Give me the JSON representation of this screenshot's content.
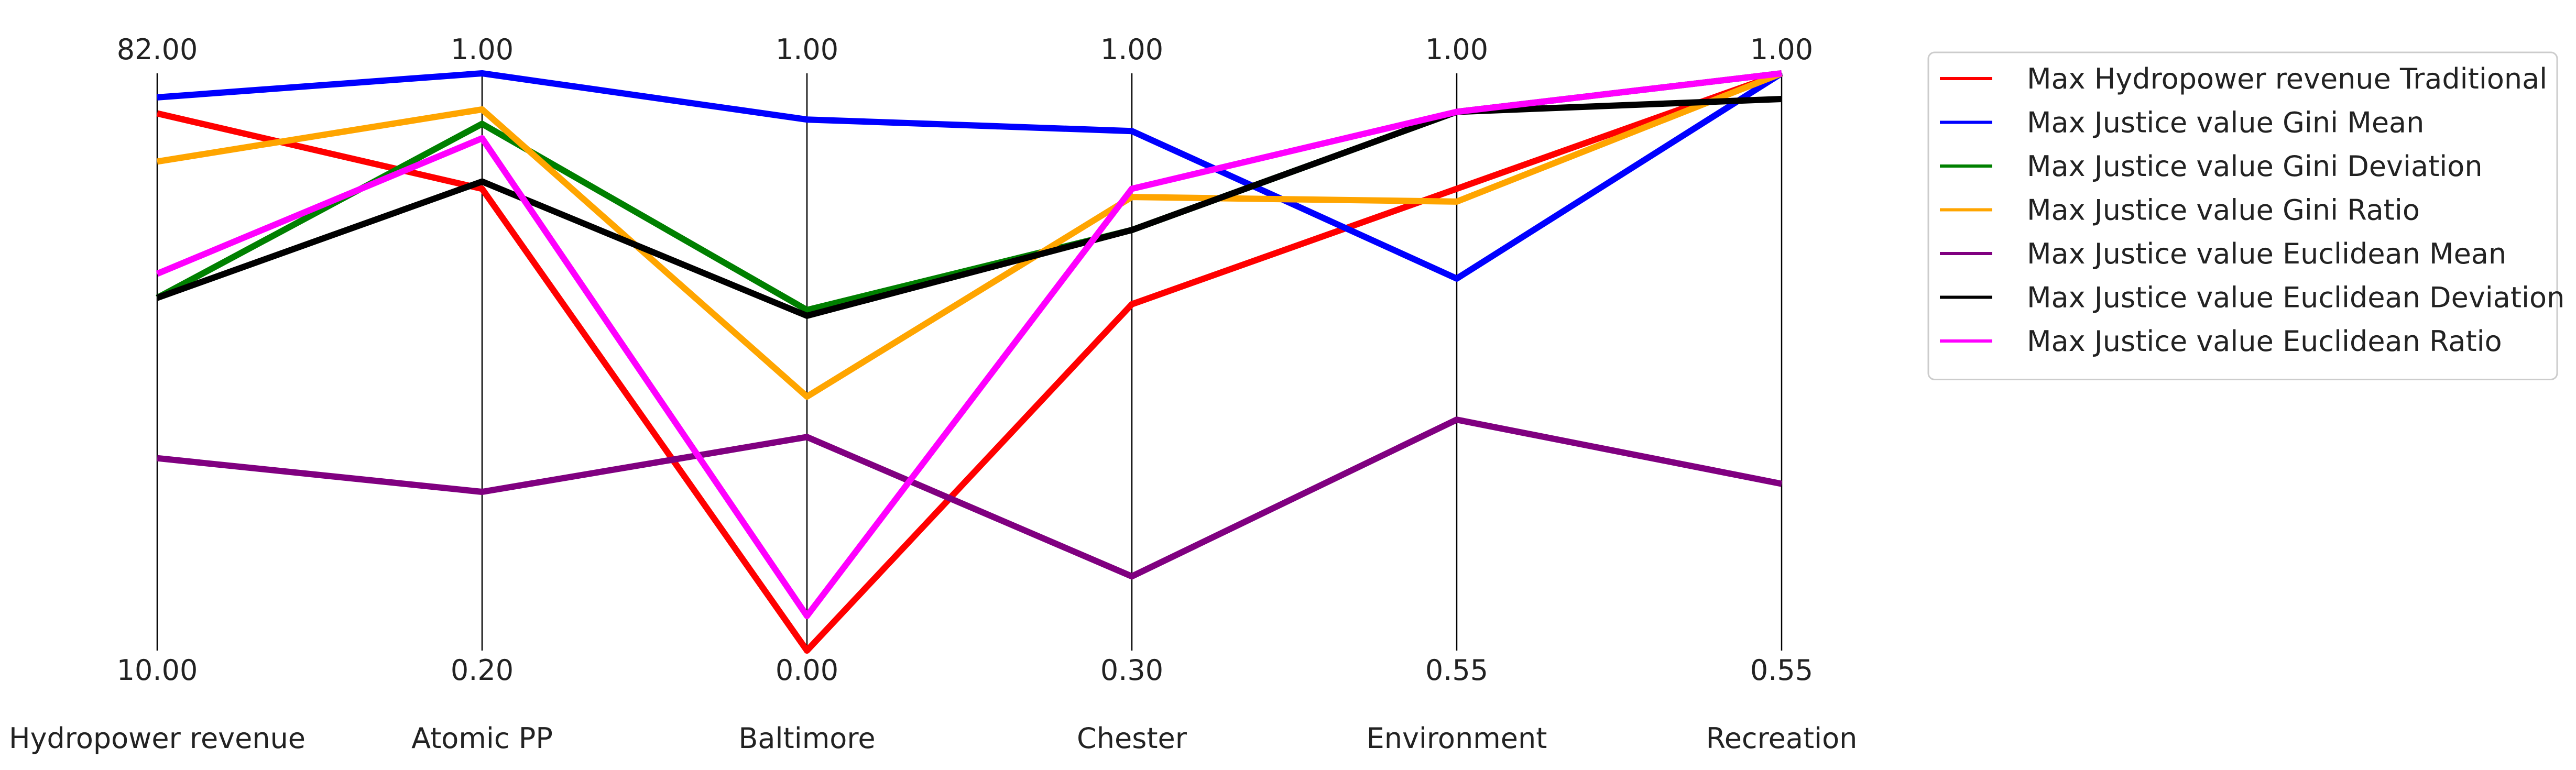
{
  "chart_data": {
    "type": "line",
    "subtype": "parallel-coordinates",
    "axes": [
      {
        "name": "Hydropower revenue",
        "max_label": "82.00",
        "min_label": "10.00",
        "min": 10.0,
        "max": 82.0
      },
      {
        "name": "Atomic PP",
        "max_label": "1.00",
        "min_label": "0.20",
        "min": 0.2,
        "max": 1.0
      },
      {
        "name": "Baltimore",
        "max_label": "1.00",
        "min_label": "0.00",
        "min": 0.0,
        "max": 1.0
      },
      {
        "name": "Chester",
        "max_label": "1.00",
        "min_label": "0.30",
        "min": 0.3,
        "max": 1.0
      },
      {
        "name": "Environment",
        "max_label": "1.00",
        "min_label": "0.55",
        "min": 0.55,
        "max": 1.0
      },
      {
        "name": "Recreation",
        "max_label": "1.00",
        "min_label": "0.55",
        "min": 0.55,
        "max": 1.0
      }
    ],
    "series": [
      {
        "name": "Max Hydropower revenue Traditional",
        "color": "#ff0000",
        "values": [
          77.0,
          0.84,
          0.0,
          0.72,
          0.91,
          1.0
        ]
      },
      {
        "name": "Max Justice value Gini Mean",
        "color": "#0000ff",
        "values": [
          79.0,
          1.0,
          0.92,
          0.93,
          0.84,
          1.0
        ]
      },
      {
        "name": "Max Justice value Gini Deviation",
        "color": "#008000",
        "values": [
          54.0,
          0.93,
          0.59,
          0.81,
          0.97,
          1.0
        ]
      },
      {
        "name": "Max Justice value Gini Ratio",
        "color": "#ffa500",
        "values": [
          71.0,
          0.95,
          0.44,
          0.85,
          0.9,
          1.0
        ]
      },
      {
        "name": "Max Justice value Euclidean Mean",
        "color": "#800080",
        "values": [
          34.0,
          0.42,
          0.37,
          0.39,
          0.73,
          0.68
        ]
      },
      {
        "name": "Max Justice value Euclidean Deviation",
        "color": "#000000",
        "values": [
          54.0,
          0.85,
          0.58,
          0.81,
          0.97,
          0.98
        ]
      },
      {
        "name": "Max Justice value Euclidean Ratio",
        "color": "#ff00ff",
        "values": [
          57.0,
          0.91,
          0.06,
          0.86,
          0.97,
          1.0
        ]
      }
    ],
    "legend_position": "right",
    "grid": false
  }
}
